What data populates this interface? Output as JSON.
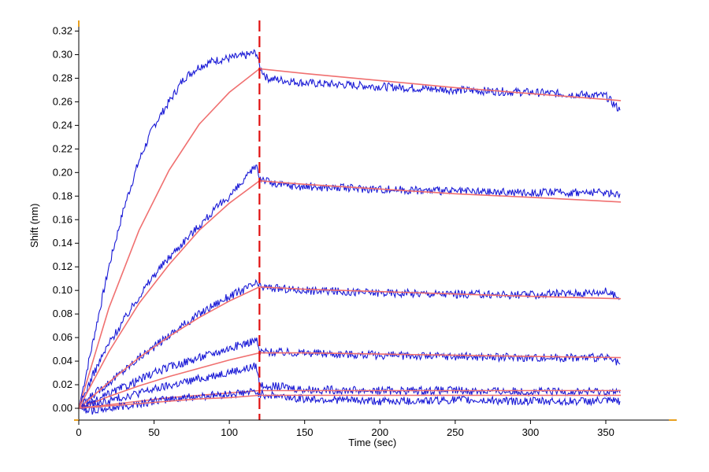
{
  "chart_data": {
    "type": "line",
    "title": "",
    "xlabel": "Time (sec)",
    "ylabel": "Shift (nm)",
    "xlim": [
      0,
      395
    ],
    "ylim": [
      -0.01,
      0.325
    ],
    "x_ticks": [
      0,
      50,
      100,
      150,
      200,
      250,
      300,
      350
    ],
    "y_ticks": [
      0.0,
      0.02,
      0.04,
      0.06,
      0.08,
      0.1,
      0.12,
      0.14,
      0.16,
      0.18,
      0.2,
      0.22,
      0.24,
      0.26,
      0.28,
      0.3,
      0.32
    ],
    "grid": false,
    "legend": "none",
    "association_end_marker": {
      "x": 120,
      "style": "dashed",
      "color": "#e01010"
    },
    "colors": {
      "measured": "#1a1ad6",
      "fit": "#f07070",
      "axis_accent": "#e8a020"
    },
    "series": [
      {
        "kind": "measured",
        "values": [
          [
            0,
            0.0
          ],
          [
            10,
            0.06
          ],
          [
            20,
            0.12
          ],
          [
            30,
            0.17
          ],
          [
            40,
            0.21
          ],
          [
            50,
            0.24
          ],
          [
            60,
            0.26
          ],
          [
            70,
            0.28
          ],
          [
            80,
            0.29
          ],
          [
            90,
            0.295
          ],
          [
            100,
            0.297
          ],
          [
            110,
            0.299
          ],
          [
            118,
            0.302
          ],
          [
            120,
            0.29
          ],
          [
            125,
            0.28
          ],
          [
            150,
            0.276
          ],
          [
            200,
            0.273
          ],
          [
            250,
            0.27
          ],
          [
            300,
            0.268
          ],
          [
            350,
            0.265
          ],
          [
            360,
            0.252
          ]
        ]
      },
      {
        "kind": "fit",
        "values": [
          [
            0,
            0.0
          ],
          [
            20,
            0.085
          ],
          [
            40,
            0.151
          ],
          [
            60,
            0.202
          ],
          [
            80,
            0.241
          ],
          [
            100,
            0.268
          ],
          [
            120,
            0.288
          ],
          [
            150,
            0.284
          ],
          [
            200,
            0.278
          ],
          [
            250,
            0.272
          ],
          [
            300,
            0.267
          ],
          [
            360,
            0.261
          ]
        ]
      },
      {
        "kind": "measured",
        "values": [
          [
            0,
            0.0
          ],
          [
            10,
            0.03
          ],
          [
            20,
            0.055
          ],
          [
            30,
            0.075
          ],
          [
            40,
            0.095
          ],
          [
            50,
            0.113
          ],
          [
            60,
            0.128
          ],
          [
            70,
            0.142
          ],
          [
            80,
            0.155
          ],
          [
            90,
            0.168
          ],
          [
            100,
            0.18
          ],
          [
            110,
            0.193
          ],
          [
            118,
            0.207
          ],
          [
            120,
            0.196
          ],
          [
            130,
            0.19
          ],
          [
            150,
            0.188
          ],
          [
            200,
            0.186
          ],
          [
            250,
            0.184
          ],
          [
            300,
            0.183
          ],
          [
            350,
            0.183
          ],
          [
            360,
            0.182
          ]
        ]
      },
      {
        "kind": "fit",
        "values": [
          [
            0,
            0.0
          ],
          [
            20,
            0.048
          ],
          [
            40,
            0.089
          ],
          [
            60,
            0.122
          ],
          [
            80,
            0.151
          ],
          [
            100,
            0.174
          ],
          [
            120,
            0.193
          ],
          [
            150,
            0.19
          ],
          [
            200,
            0.186
          ],
          [
            250,
            0.182
          ],
          [
            300,
            0.179
          ],
          [
            360,
            0.175
          ]
        ]
      },
      {
        "kind": "measured",
        "values": [
          [
            0,
            0.0
          ],
          [
            10,
            0.012
          ],
          [
            20,
            0.022
          ],
          [
            30,
            0.032
          ],
          [
            40,
            0.043
          ],
          [
            50,
            0.052
          ],
          [
            60,
            0.062
          ],
          [
            70,
            0.071
          ],
          [
            80,
            0.08
          ],
          [
            90,
            0.088
          ],
          [
            100,
            0.095
          ],
          [
            110,
            0.101
          ],
          [
            118,
            0.106
          ],
          [
            120,
            0.103
          ],
          [
            150,
            0.1
          ],
          [
            200,
            0.098
          ],
          [
            250,
            0.097
          ],
          [
            300,
            0.096
          ],
          [
            350,
            0.099
          ],
          [
            360,
            0.093
          ]
        ]
      },
      {
        "kind": "fit",
        "values": [
          [
            0,
            0.0
          ],
          [
            20,
            0.022
          ],
          [
            40,
            0.043
          ],
          [
            60,
            0.061
          ],
          [
            80,
            0.077
          ],
          [
            100,
            0.091
          ],
          [
            120,
            0.103
          ],
          [
            150,
            0.101
          ],
          [
            200,
            0.099
          ],
          [
            250,
            0.097
          ],
          [
            300,
            0.095
          ],
          [
            360,
            0.093
          ]
        ]
      },
      {
        "kind": "measured",
        "values": [
          [
            0,
            0.0
          ],
          [
            10,
            0.005
          ],
          [
            20,
            0.012
          ],
          [
            30,
            0.018
          ],
          [
            40,
            0.024
          ],
          [
            50,
            0.03
          ],
          [
            60,
            0.035
          ],
          [
            70,
            0.039
          ],
          [
            80,
            0.043
          ],
          [
            90,
            0.047
          ],
          [
            100,
            0.051
          ],
          [
            110,
            0.055
          ],
          [
            118,
            0.058
          ],
          [
            120,
            0.048
          ],
          [
            150,
            0.047
          ],
          [
            200,
            0.045
          ],
          [
            250,
            0.044
          ],
          [
            300,
            0.043
          ],
          [
            350,
            0.043
          ],
          [
            360,
            0.037
          ]
        ]
      },
      {
        "kind": "fit",
        "values": [
          [
            0,
            0.0
          ],
          [
            20,
            0.01
          ],
          [
            40,
            0.019
          ],
          [
            60,
            0.027
          ],
          [
            80,
            0.034
          ],
          [
            100,
            0.041
          ],
          [
            120,
            0.047
          ],
          [
            150,
            0.047
          ],
          [
            200,
            0.046
          ],
          [
            250,
            0.045
          ],
          [
            300,
            0.044
          ],
          [
            360,
            0.043
          ]
        ]
      },
      {
        "kind": "measured",
        "values": [
          [
            0,
            0.0
          ],
          [
            10,
            0.003
          ],
          [
            20,
            0.006
          ],
          [
            30,
            0.01
          ],
          [
            40,
            0.013
          ],
          [
            50,
            0.016
          ],
          [
            60,
            0.019
          ],
          [
            70,
            0.022
          ],
          [
            80,
            0.025
          ],
          [
            90,
            0.028
          ],
          [
            100,
            0.031
          ],
          [
            110,
            0.033
          ],
          [
            118,
            0.036
          ],
          [
            120,
            0.02
          ],
          [
            150,
            0.016
          ],
          [
            200,
            0.015
          ],
          [
            250,
            0.015
          ],
          [
            300,
            0.014
          ],
          [
            350,
            0.014
          ],
          [
            360,
            0.013
          ]
        ]
      },
      {
        "kind": "fit",
        "values": [
          [
            0,
            0.0
          ],
          [
            20,
            0.003
          ],
          [
            40,
            0.006
          ],
          [
            60,
            0.009
          ],
          [
            80,
            0.011
          ],
          [
            100,
            0.013
          ],
          [
            120,
            0.015
          ],
          [
            150,
            0.015
          ],
          [
            200,
            0.015
          ],
          [
            250,
            0.015
          ],
          [
            300,
            0.015
          ],
          [
            360,
            0.015
          ]
        ]
      },
      {
        "kind": "measured",
        "values": [
          [
            0,
            0.0
          ],
          [
            10,
            -0.002
          ],
          [
            20,
            0.0
          ],
          [
            30,
            0.002
          ],
          [
            40,
            0.004
          ],
          [
            50,
            0.006
          ],
          [
            60,
            0.008
          ],
          [
            70,
            0.009
          ],
          [
            80,
            0.01
          ],
          [
            90,
            0.011
          ],
          [
            100,
            0.012
          ],
          [
            110,
            0.013
          ],
          [
            118,
            0.014
          ],
          [
            120,
            0.012
          ],
          [
            150,
            0.008
          ],
          [
            200,
            0.006
          ],
          [
            250,
            0.007
          ],
          [
            300,
            0.006
          ],
          [
            350,
            0.006
          ],
          [
            360,
            0.006
          ]
        ]
      },
      {
        "kind": "fit",
        "values": [
          [
            0,
            0.0
          ],
          [
            20,
            0.002
          ],
          [
            40,
            0.004
          ],
          [
            60,
            0.006
          ],
          [
            80,
            0.008
          ],
          [
            100,
            0.009
          ],
          [
            120,
            0.011
          ],
          [
            150,
            0.011
          ],
          [
            200,
            0.011
          ],
          [
            250,
            0.011
          ],
          [
            300,
            0.011
          ],
          [
            360,
            0.011
          ]
        ]
      }
    ]
  }
}
